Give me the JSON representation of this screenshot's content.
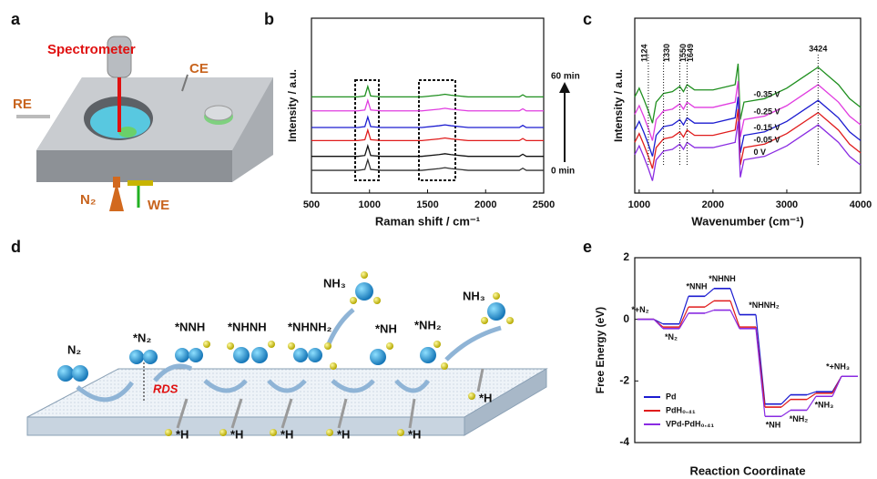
{
  "panel_labels": [
    "a",
    "b",
    "c",
    "d",
    "e"
  ],
  "setup": {
    "labels": [
      "Spectrometer",
      "CE",
      "RE",
      "N₂",
      "WE"
    ]
  },
  "mechanism": {
    "labels": [
      "N₂",
      "*N₂",
      "*NNH",
      "*NHNH",
      "*NHNH₂",
      "*NH",
      "*NH₂",
      "NH₃",
      "NH₃"
    ],
    "rds": "RDS",
    "h_labels": [
      "*H",
      "*H",
      "*H",
      "*H",
      "*H",
      "*H"
    ]
  },
  "chart_data": [
    {
      "type": "line",
      "xlabel": "Raman shift / cm⁻¹",
      "ylabel": "Intensity / a.u.",
      "xlim": [
        500,
        2500
      ],
      "xticks": [
        500,
        1000,
        1500,
        2000,
        2500
      ],
      "ylim": [
        0,
        10
      ],
      "annotations": [
        "60 min",
        "0 min"
      ],
      "x": [
        500,
        900,
        960,
        985,
        1010,
        1100,
        1450,
        1600,
        1650,
        1700,
        1850,
        2290,
        2320,
        2350,
        2500
      ],
      "series": [
        {
          "color": "#1f8f1f",
          "values": [
            5.5,
            5.5,
            5.55,
            6.1,
            5.55,
            5.5,
            5.5,
            5.6,
            5.65,
            5.6,
            5.5,
            5.5,
            5.62,
            5.5,
            5.5
          ]
        },
        {
          "color": "#e03ce0",
          "values": [
            4.7,
            4.7,
            4.75,
            5.3,
            4.75,
            4.7,
            4.7,
            4.8,
            4.85,
            4.8,
            4.7,
            4.7,
            4.82,
            4.7,
            4.7
          ]
        },
        {
          "color": "#1c1cd0",
          "values": [
            3.75,
            3.75,
            3.8,
            4.35,
            3.8,
            3.75,
            3.75,
            3.85,
            3.9,
            3.85,
            3.75,
            3.75,
            3.87,
            3.75,
            3.75
          ]
        },
        {
          "color": "#e01c1c",
          "values": [
            3,
            3,
            3.05,
            3.6,
            3.05,
            3,
            3,
            3.1,
            3.15,
            3.1,
            3,
            3,
            3.12,
            3,
            3
          ]
        },
        {
          "color": "#111111",
          "values": [
            2.1,
            2.1,
            2.15,
            2.7,
            2.15,
            2.1,
            2.1,
            2.2,
            2.25,
            2.2,
            2.1,
            2.1,
            2.22,
            2.1,
            2.1
          ]
        },
        {
          "color": "#333333",
          "values": [
            1.3,
            1.3,
            1.35,
            1.9,
            1.35,
            1.3,
            1.3,
            1.4,
            1.45,
            1.4,
            1.3,
            1.3,
            1.42,
            1.3,
            1.3
          ]
        }
      ]
    },
    {
      "type": "line",
      "xlabel": "Wavenumber (cm⁻¹)",
      "ylabel": "Intensity / a.u.",
      "xlim": [
        940,
        4000
      ],
      "xticks": [
        1000,
        2000,
        3000,
        4000
      ],
      "ylim": [
        0,
        10
      ],
      "peak_labels": [
        {
          "text": "1124",
          "x": 1124
        },
        {
          "text": "1330",
          "x": 1330
        },
        {
          "text": "1550",
          "x": 1550
        },
        {
          "text": "1649",
          "x": 1649
        },
        {
          "text": "3424",
          "x": 3424
        }
      ],
      "x": [
        940,
        1000,
        1060,
        1124,
        1180,
        1230,
        1330,
        1450,
        1550,
        1600,
        1649,
        1750,
        2000,
        2300,
        2340,
        2370,
        2420,
        2700,
        3000,
        3424,
        3700,
        3850,
        4000
      ],
      "series": [
        {
          "name": "-0.35 V",
          "color": "#1f8f1f",
          "values": [
            5.5,
            6.0,
            5.4,
            4.7,
            4.0,
            5.2,
            5.7,
            5.8,
            6.1,
            5.8,
            6.2,
            5.9,
            5.9,
            6.2,
            7.4,
            4.2,
            5.2,
            5.4,
            6.0,
            7.2,
            6.2,
            5.4,
            4.9
          ]
        },
        {
          "name": "-0.25 V",
          "color": "#e03ce0",
          "values": [
            4.5,
            5.0,
            4.4,
            3.7,
            3.0,
            4.2,
            4.7,
            4.8,
            5.1,
            4.8,
            5.2,
            4.9,
            4.9,
            5.2,
            6.4,
            3.2,
            4.2,
            4.4,
            5.0,
            6.2,
            5.2,
            4.4,
            3.9
          ]
        },
        {
          "name": "-0.15 V",
          "color": "#1c1cd0",
          "values": [
            3.6,
            4.1,
            3.5,
            2.8,
            2.1,
            3.3,
            3.8,
            3.9,
            4.2,
            3.9,
            4.3,
            4.0,
            4.0,
            4.3,
            5.5,
            2.3,
            3.3,
            3.5,
            4.1,
            5.3,
            4.3,
            3.5,
            3.0
          ]
        },
        {
          "name": "-0.05 V",
          "color": "#e01c1c",
          "values": [
            2.9,
            3.4,
            2.8,
            2.1,
            1.4,
            2.6,
            3.1,
            3.2,
            3.5,
            3.2,
            3.6,
            3.3,
            3.3,
            3.6,
            4.8,
            1.6,
            2.6,
            2.8,
            3.4,
            4.6,
            3.6,
            2.8,
            2.3
          ]
        },
        {
          "name": "0 V",
          "color": "#8a2be2",
          "values": [
            2.2,
            2.7,
            2.1,
            1.4,
            0.7,
            1.9,
            2.4,
            2.5,
            2.8,
            2.5,
            2.9,
            2.6,
            2.6,
            2.9,
            4.1,
            0.9,
            1.9,
            2.1,
            2.7,
            3.9,
            2.9,
            2.1,
            1.6
          ]
        }
      ]
    },
    {
      "type": "step",
      "xlabel": "Reaction Coordinate",
      "ylabel": "Free Energy (eV)",
      "ylim": [
        -4,
        2
      ],
      "yticks": [
        -4,
        -2,
        0,
        2
      ],
      "legend": "lower left",
      "categories": [
        "*+N₂",
        "*N₂",
        "*NNH",
        "*NHNH",
        "*NHNH₂",
        "*NH",
        "*NH₂",
        "*NH₃",
        "*+NH₃"
      ],
      "series": [
        {
          "name": "Pd",
          "color": "#1c1cd0",
          "values": [
            0,
            -0.15,
            0.75,
            1.0,
            0.15,
            -2.75,
            -2.45,
            -2.35,
            -1.85
          ]
        },
        {
          "name": "PdH₀.₄₁",
          "color": "#e01c1c",
          "values": [
            0,
            -0.25,
            0.4,
            0.6,
            -0.25,
            -2.85,
            -2.6,
            -2.4,
            -1.85
          ]
        },
        {
          "name": "VPd-PdH₀.₄₁",
          "color": "#8a2be2",
          "values": [
            0,
            -0.3,
            0.2,
            0.3,
            -0.3,
            -3.15,
            -2.95,
            -2.5,
            -1.85
          ]
        }
      ]
    }
  ]
}
